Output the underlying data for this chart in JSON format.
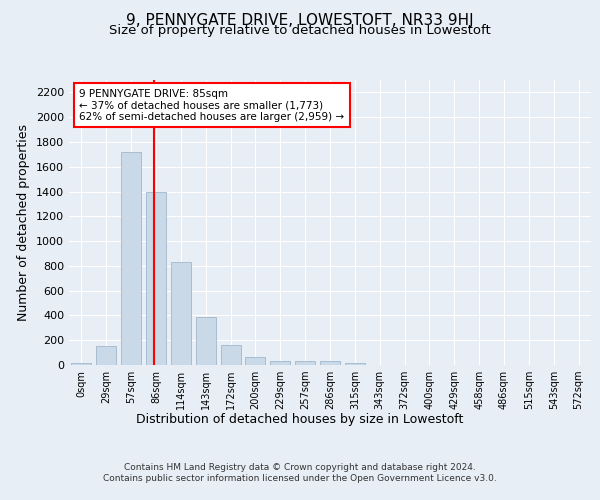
{
  "title": "9, PENNYGATE DRIVE, LOWESTOFT, NR33 9HJ",
  "subtitle": "Size of property relative to detached houses in Lowestoft",
  "xlabel": "Distribution of detached houses by size in Lowestoft",
  "ylabel": "Number of detached properties",
  "bin_labels": [
    "0sqm",
    "29sqm",
    "57sqm",
    "86sqm",
    "114sqm",
    "143sqm",
    "172sqm",
    "200sqm",
    "229sqm",
    "257sqm",
    "286sqm",
    "315sqm",
    "343sqm",
    "372sqm",
    "400sqm",
    "429sqm",
    "458sqm",
    "486sqm",
    "515sqm",
    "543sqm",
    "572sqm"
  ],
  "bar_values": [
    15,
    155,
    1720,
    1400,
    830,
    385,
    165,
    65,
    35,
    30,
    30,
    15,
    0,
    0,
    0,
    0,
    0,
    0,
    0,
    0,
    0
  ],
  "bar_color": "#c9d9e8",
  "bar_edgecolor": "#a0b8cc",
  "vline_x": 2.93,
  "annotation_text": "9 PENNYGATE DRIVE: 85sqm\n← 37% of detached houses are smaller (1,773)\n62% of semi-detached houses are larger (2,959) →",
  "ylim": [
    0,
    2300
  ],
  "yticks": [
    0,
    200,
    400,
    600,
    800,
    1000,
    1200,
    1400,
    1600,
    1800,
    2000,
    2200
  ],
  "background_color": "#e8eef5",
  "footer_line1": "Contains HM Land Registry data © Crown copyright and database right 2024.",
  "footer_line2": "Contains public sector information licensed under the Open Government Licence v3.0.",
  "title_fontsize": 11,
  "subtitle_fontsize": 9.5,
  "xlabel_fontsize": 9,
  "ylabel_fontsize": 9
}
